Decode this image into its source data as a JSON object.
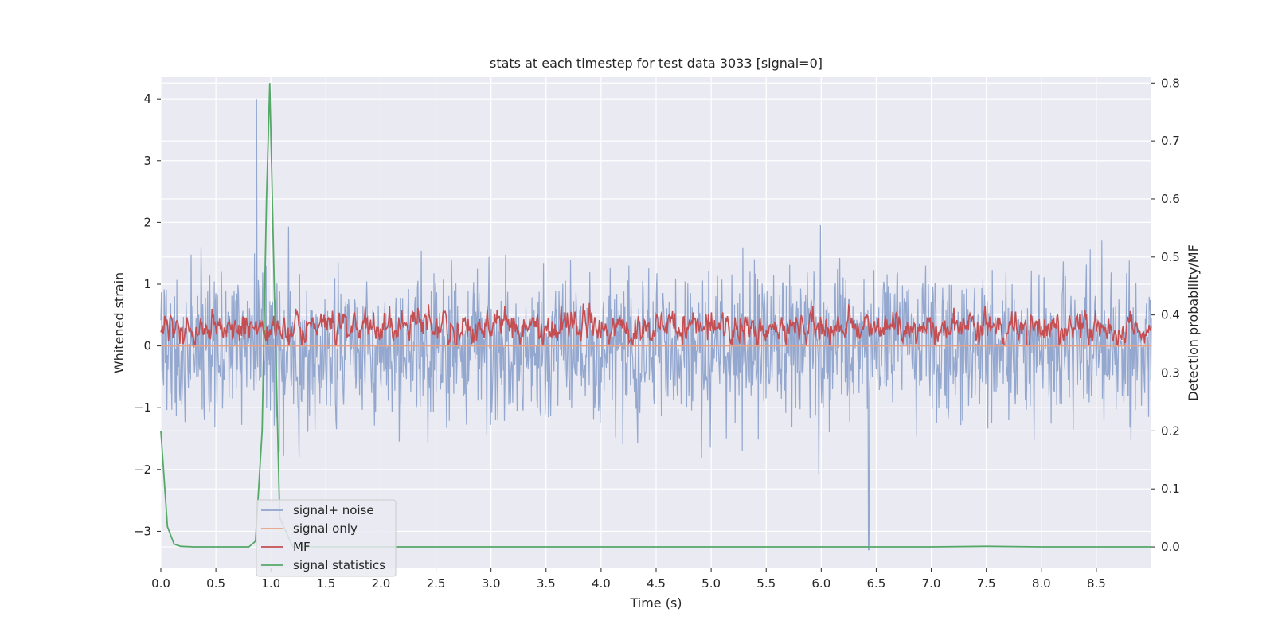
{
  "chart_data": {
    "type": "line",
    "title": "stats at each timestep for test data 3033 [signal=0]",
    "xlabel": "Time (s)",
    "ylabel": "Whitened strain",
    "ylabel_right": "Detection probability/MF",
    "xlim": [
      0.0,
      9.0
    ],
    "ylim": [
      -3.6,
      4.35
    ],
    "ylim_right": [
      -0.037,
      0.81
    ],
    "x_ticks": [
      "0.0",
      "0.5",
      "1.0",
      "1.5",
      "2.0",
      "2.5",
      "3.0",
      "3.5",
      "4.0",
      "4.5",
      "5.0",
      "5.5",
      "6.0",
      "6.5",
      "7.0",
      "7.5",
      "8.0",
      "8.5"
    ],
    "y_ticks_left": [
      "4",
      "3",
      "2",
      "1",
      "0",
      "−1",
      "−2",
      "−3"
    ],
    "y_ticks_right": [
      "0.8",
      "0.7",
      "0.6",
      "0.5",
      "0.4",
      "0.3",
      "0.2",
      "0.1",
      "0.0"
    ],
    "grid": true,
    "legend_position": "bottom-left",
    "series": [
      {
        "name": "signal+ noise",
        "axis": "left",
        "color": "#8fa4cc",
        "description_values": {
          "typical_amplitude": 1.2,
          "peak_max": 4.0,
          "peak_min": -3.3,
          "max_time": 0.87,
          "min_time": 6.43
        }
      },
      {
        "name": "signal only",
        "axis": "left",
        "color": "#e9a085",
        "x": [
          0.0,
          9.0
        ],
        "y": [
          0.0,
          0.0
        ]
      },
      {
        "name": "MF",
        "axis": "left",
        "color": "#c44e52",
        "description_values": {
          "mean": 0.3,
          "min": 0.0,
          "max": 1.0
        }
      },
      {
        "name": "signal statistics",
        "axis": "right",
        "color": "#55a868",
        "x": [
          0.0,
          0.06,
          0.12,
          0.18,
          0.3,
          0.5,
          0.8,
          0.86,
          0.92,
          0.96,
          0.99,
          1.03,
          1.08,
          1.2,
          2.0,
          3.0,
          4.0,
          5.0,
          6.0,
          7.0,
          7.5,
          8.0,
          9.0
        ],
        "y": [
          0.2,
          0.035,
          0.005,
          0.001,
          0.0,
          0.0,
          0.0,
          0.01,
          0.2,
          0.6,
          0.8,
          0.45,
          0.05,
          0.0,
          0.0,
          0.0,
          0.0,
          0.0,
          0.0,
          0.0,
          0.001,
          0.0,
          0.0
        ]
      }
    ]
  }
}
